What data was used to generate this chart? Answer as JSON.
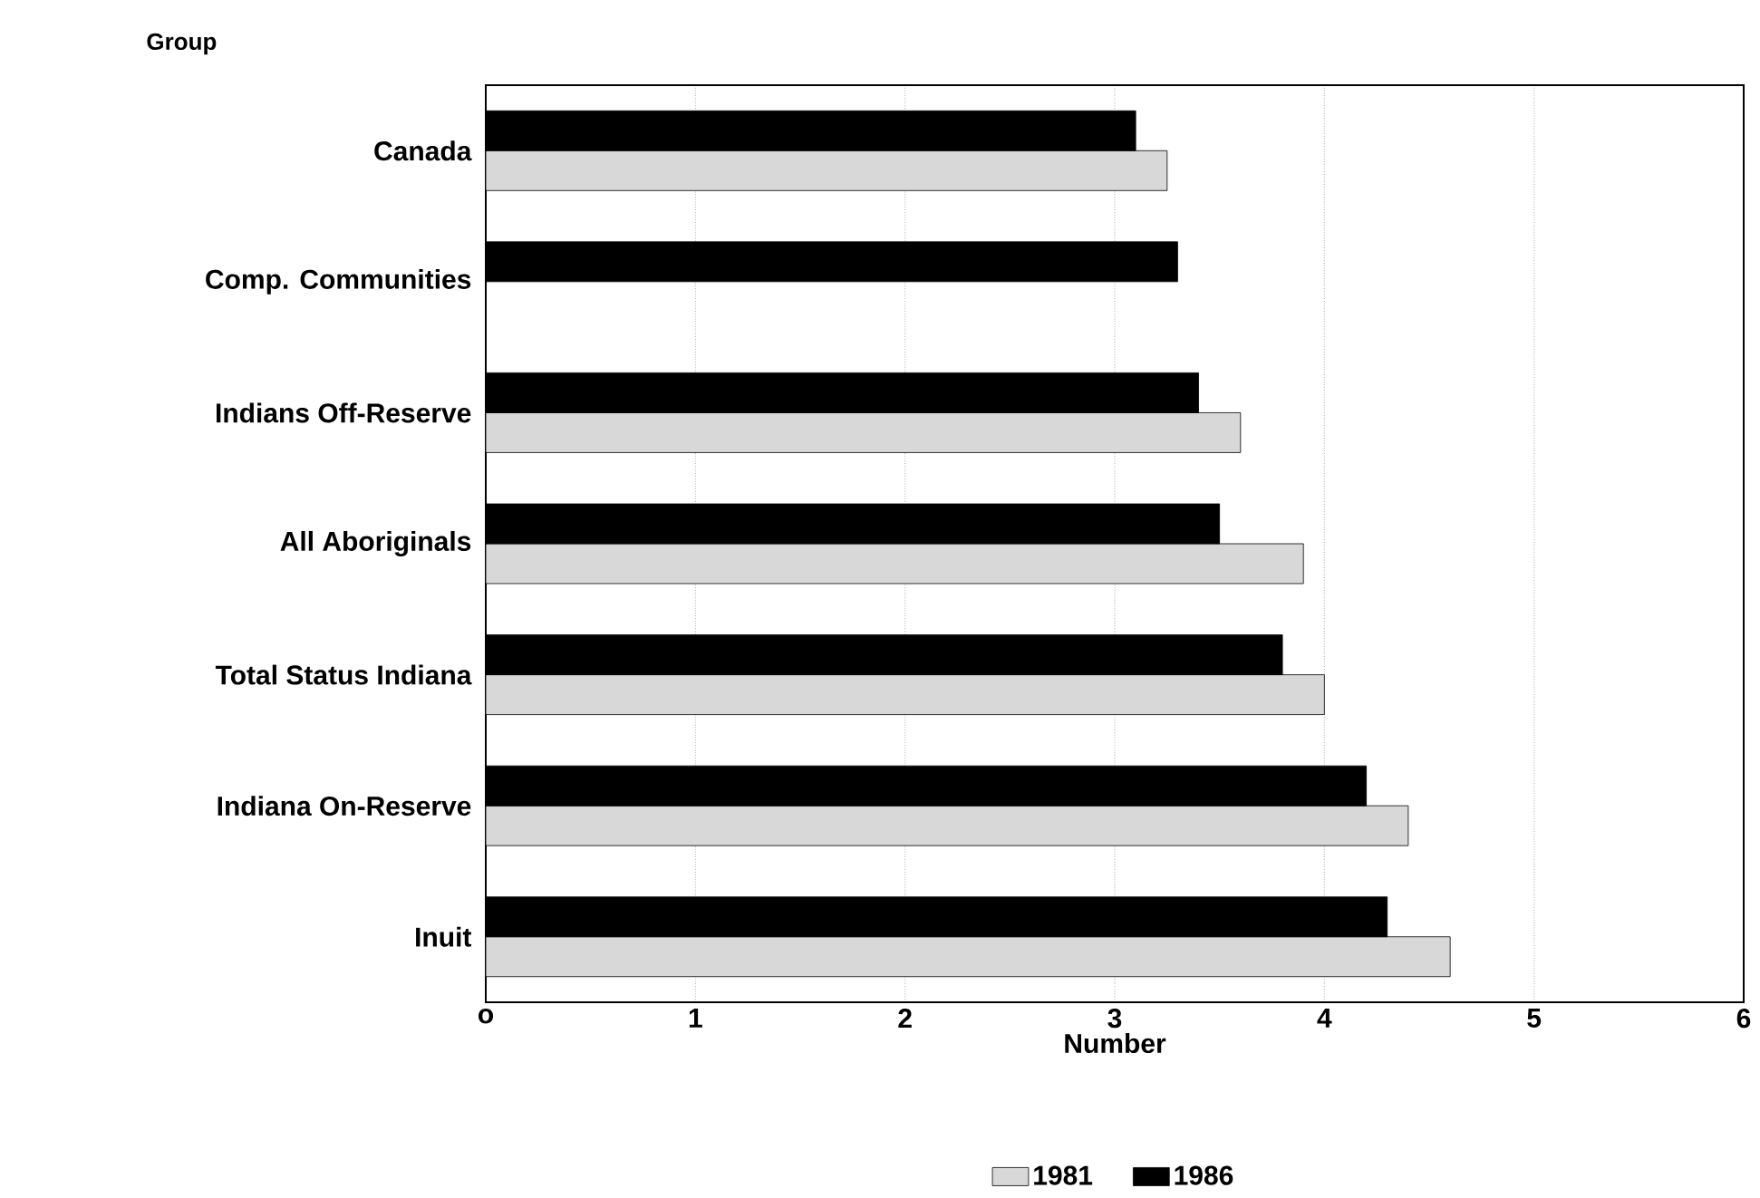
{
  "chart_data": {
    "type": "bar",
    "orientation": "horizontal",
    "ylabel": "Group",
    "xlabel": "Number",
    "categories": [
      "Canada",
      "Comp. Communities",
      "Indians Off-Reserve",
      "All Aboriginals",
      "Total Status Indiana",
      "Indiana On-Reserve",
      "Inuit"
    ],
    "series": [
      {
        "name": "1981",
        "color": "#d8d8d8",
        "values": [
          3.25,
          null,
          3.6,
          3.9,
          4.0,
          4.4,
          4.6
        ]
      },
      {
        "name": "1986",
        "color": "#000000",
        "values": [
          3.1,
          3.3,
          3.4,
          3.5,
          3.8,
          4.2,
          4.3
        ]
      }
    ],
    "xlim": [
      0,
      6
    ],
    "xticks": [
      {
        "value": 0,
        "label": "o"
      },
      1,
      2,
      3,
      4,
      5,
      6
    ],
    "grid": "x",
    "legend": "bottom"
  }
}
